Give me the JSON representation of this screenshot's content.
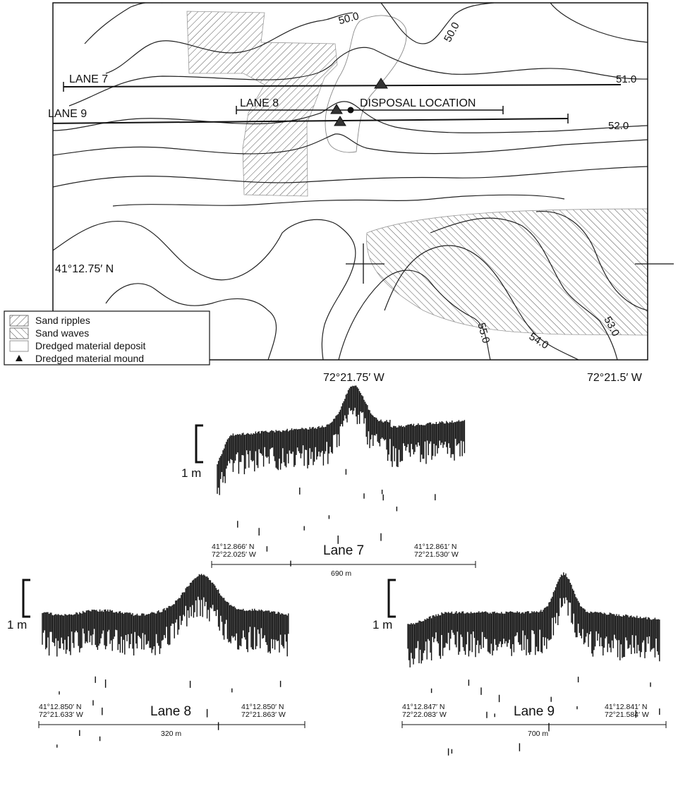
{
  "map": {
    "lanes": [
      {
        "label": "LANE 7"
      },
      {
        "label": "LANE 8"
      },
      {
        "label": "LANE 9"
      }
    ],
    "disposal_label": "DISPOSAL LOCATION",
    "contours": [
      {
        "label": "50.0"
      },
      {
        "label": "50.0"
      },
      {
        "label": "51.0"
      },
      {
        "label": "52.0"
      },
      {
        "label": "53.0"
      },
      {
        "label": "54.0"
      },
      {
        "label": "55.0"
      }
    ],
    "lat_label": "41°12.75′ N",
    "lon_label_center": "72°21.75′ W",
    "lon_label_right": "72°21.5′ W"
  },
  "legend": {
    "items": [
      {
        "label": "Sand ripples",
        "symbol": "sand-ripples-swatch"
      },
      {
        "label": "Sand waves",
        "symbol": "sand-waves-swatch"
      },
      {
        "label": "Dredged material deposit",
        "symbol": "deposit-swatch"
      },
      {
        "label": "Dredged material mound",
        "symbol": "mound-triangle"
      }
    ]
  },
  "profiles": [
    {
      "name": "Lane 7",
      "scale_label": "1 m",
      "left_lat": "41°12.866′ N",
      "left_lon": "72°22.025′ W",
      "right_lat": "41°12.861′ N",
      "right_lon": "72°21.530′ W",
      "distance": "690 m"
    },
    {
      "name": "Lane 8",
      "scale_label": "1 m",
      "left_lat": "41°12.850′ N",
      "left_lon": "72°21.633′ W",
      "right_lat": "41°12.850′ N",
      "right_lon": "72°21.863′ W",
      "distance": "320 m"
    },
    {
      "name": "Lane 9",
      "scale_label": "1 m",
      "left_lat": "41°12.847′ N",
      "left_lon": "72°22.083′ W",
      "right_lat": "41°12.841′ N",
      "right_lon": "72°21.584′ W",
      "distance": "700 m"
    }
  ],
  "colors": {
    "ink": "#111111",
    "background": "#ffffff",
    "deposit_outline": "#888888"
  }
}
